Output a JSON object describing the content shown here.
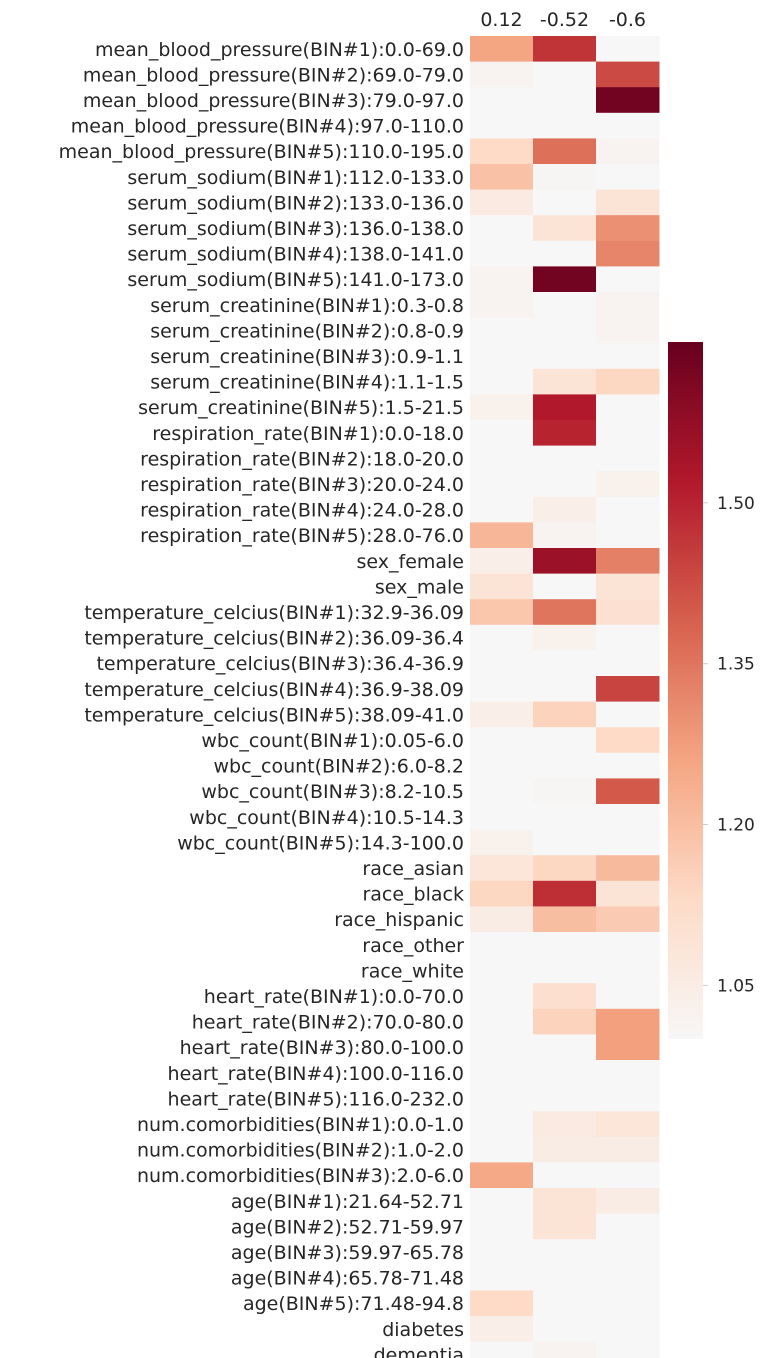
{
  "chart_data": {
    "type": "heatmap",
    "title": "",
    "xlabel": "",
    "ylabel": "",
    "columns": [
      "0.12",
      "-0.52",
      "-0.6"
    ],
    "rows": [
      "mean_blood_pressure(BIN#1):0.0-69.0",
      "mean_blood_pressure(BIN#2):69.0-79.0",
      "mean_blood_pressure(BIN#3):79.0-97.0",
      "mean_blood_pressure(BIN#4):97.0-110.0",
      "mean_blood_pressure(BIN#5):110.0-195.0",
      "serum_sodium(BIN#1):112.0-133.0",
      "serum_sodium(BIN#2):133.0-136.0",
      "serum_sodium(BIN#3):136.0-138.0",
      "serum_sodium(BIN#4):138.0-141.0",
      "serum_sodium(BIN#5):141.0-173.0",
      "serum_creatinine(BIN#1):0.3-0.8",
      "serum_creatinine(BIN#2):0.8-0.9",
      "serum_creatinine(BIN#3):0.9-1.1",
      "serum_creatinine(BIN#4):1.1-1.5",
      "serum_creatinine(BIN#5):1.5-21.5",
      "respiration_rate(BIN#1):0.0-18.0",
      "respiration_rate(BIN#2):18.0-20.0",
      "respiration_rate(BIN#3):20.0-24.0",
      "respiration_rate(BIN#4):24.0-28.0",
      "respiration_rate(BIN#5):28.0-76.0",
      "sex_female",
      "sex_male",
      "temperature_celcius(BIN#1):32.9-36.09",
      "temperature_celcius(BIN#2):36.09-36.4",
      "temperature_celcius(BIN#3):36.4-36.9",
      "temperature_celcius(BIN#4):36.9-38.09",
      "temperature_celcius(BIN#5):38.09-41.0",
      "wbc_count(BIN#1):0.05-6.0",
      "wbc_count(BIN#2):6.0-8.2",
      "wbc_count(BIN#3):8.2-10.5",
      "wbc_count(BIN#4):10.5-14.3",
      "wbc_count(BIN#5):14.3-100.0",
      "race_asian",
      "race_black",
      "race_hispanic",
      "race_other",
      "race_white",
      "heart_rate(BIN#1):0.0-70.0",
      "heart_rate(BIN#2):70.0-80.0",
      "heart_rate(BIN#3):80.0-100.0",
      "heart_rate(BIN#4):100.0-116.0",
      "heart_rate(BIN#5):116.0-232.0",
      "num.comorbidities(BIN#1):0.0-1.0",
      "num.comorbidities(BIN#2):1.0-2.0",
      "num.comorbidities(BIN#3):2.0-6.0",
      "age(BIN#1):21.64-52.71",
      "age(BIN#2):52.71-59.97",
      "age(BIN#3):59.97-65.78",
      "age(BIN#4):65.78-71.48",
      "age(BIN#5):71.48-94.8",
      "diabetes",
      "dementia"
    ],
    "values": [
      [
        1.26,
        1.47,
        1.0
      ],
      [
        1.02,
        1.0,
        1.43
      ],
      [
        1.0,
        1.0,
        1.63
      ],
      [
        1.0,
        1.0,
        1.0
      ],
      [
        1.13,
        1.36,
        1.02
      ],
      [
        1.19,
        1.01,
        1.0
      ],
      [
        1.06,
        1.0,
        1.09
      ],
      [
        1.0,
        1.09,
        1.3
      ],
      [
        1.0,
        1.0,
        1.32
      ],
      [
        1.02,
        1.63,
        1.0
      ],
      [
        1.02,
        1.0,
        1.02
      ],
      [
        1.0,
        1.0,
        1.02
      ],
      [
        1.0,
        1.0,
        1.0
      ],
      [
        1.0,
        1.09,
        1.14
      ],
      [
        1.03,
        1.52,
        1.0
      ],
      [
        1.0,
        1.5,
        1.0
      ],
      [
        1.0,
        1.0,
        1.0
      ],
      [
        1.0,
        1.0,
        1.03
      ],
      [
        1.0,
        1.04,
        1.0
      ],
      [
        1.22,
        1.02,
        1.0
      ],
      [
        1.04,
        1.56,
        1.33
      ],
      [
        1.09,
        1.0,
        1.09
      ],
      [
        1.18,
        1.35,
        1.1
      ],
      [
        1.0,
        1.03,
        1.0
      ],
      [
        1.0,
        1.0,
        1.0
      ],
      [
        1.0,
        1.0,
        1.44
      ],
      [
        1.04,
        1.15,
        1.0
      ],
      [
        1.0,
        1.0,
        1.13
      ],
      [
        1.0,
        1.0,
        1.0
      ],
      [
        1.0,
        1.01,
        1.4
      ],
      [
        1.0,
        1.0,
        1.0
      ],
      [
        1.03,
        1.0,
        1.0
      ],
      [
        1.08,
        1.14,
        1.21
      ],
      [
        1.14,
        1.48,
        1.09
      ],
      [
        1.05,
        1.2,
        1.17
      ],
      [
        1.0,
        1.0,
        1.0
      ],
      [
        1.0,
        1.0,
        1.0
      ],
      [
        1.0,
        1.11,
        1.0
      ],
      [
        1.0,
        1.15,
        1.27
      ],
      [
        1.0,
        1.0,
        1.27
      ],
      [
        1.0,
        1.0,
        1.0
      ],
      [
        1.0,
        1.0,
        1.0
      ],
      [
        1.0,
        1.06,
        1.08
      ],
      [
        1.0,
        1.05,
        1.05
      ],
      [
        1.25,
        1.0,
        1.0
      ],
      [
        1.0,
        1.09,
        1.05
      ],
      [
        1.0,
        1.09,
        1.0
      ],
      [
        1.0,
        1.0,
        1.0
      ],
      [
        1.0,
        1.0,
        1.0
      ],
      [
        1.13,
        1.0,
        1.0
      ],
      [
        1.04,
        1.0,
        1.0
      ],
      [
        1.0,
        1.02,
        1.0
      ]
    ],
    "colorbar": {
      "range": [
        1.0,
        1.65
      ],
      "ticks": [
        "1.05",
        "1.20",
        "1.35",
        "1.50"
      ],
      "tick_values": [
        1.05,
        1.2,
        1.35,
        1.5
      ],
      "colorscale": [
        "#f7f7f7",
        "#fddbc7",
        "#f4a582",
        "#d6604d",
        "#b2182b",
        "#67001f"
      ]
    },
    "grid": false,
    "legend": "colorbar-right"
  }
}
